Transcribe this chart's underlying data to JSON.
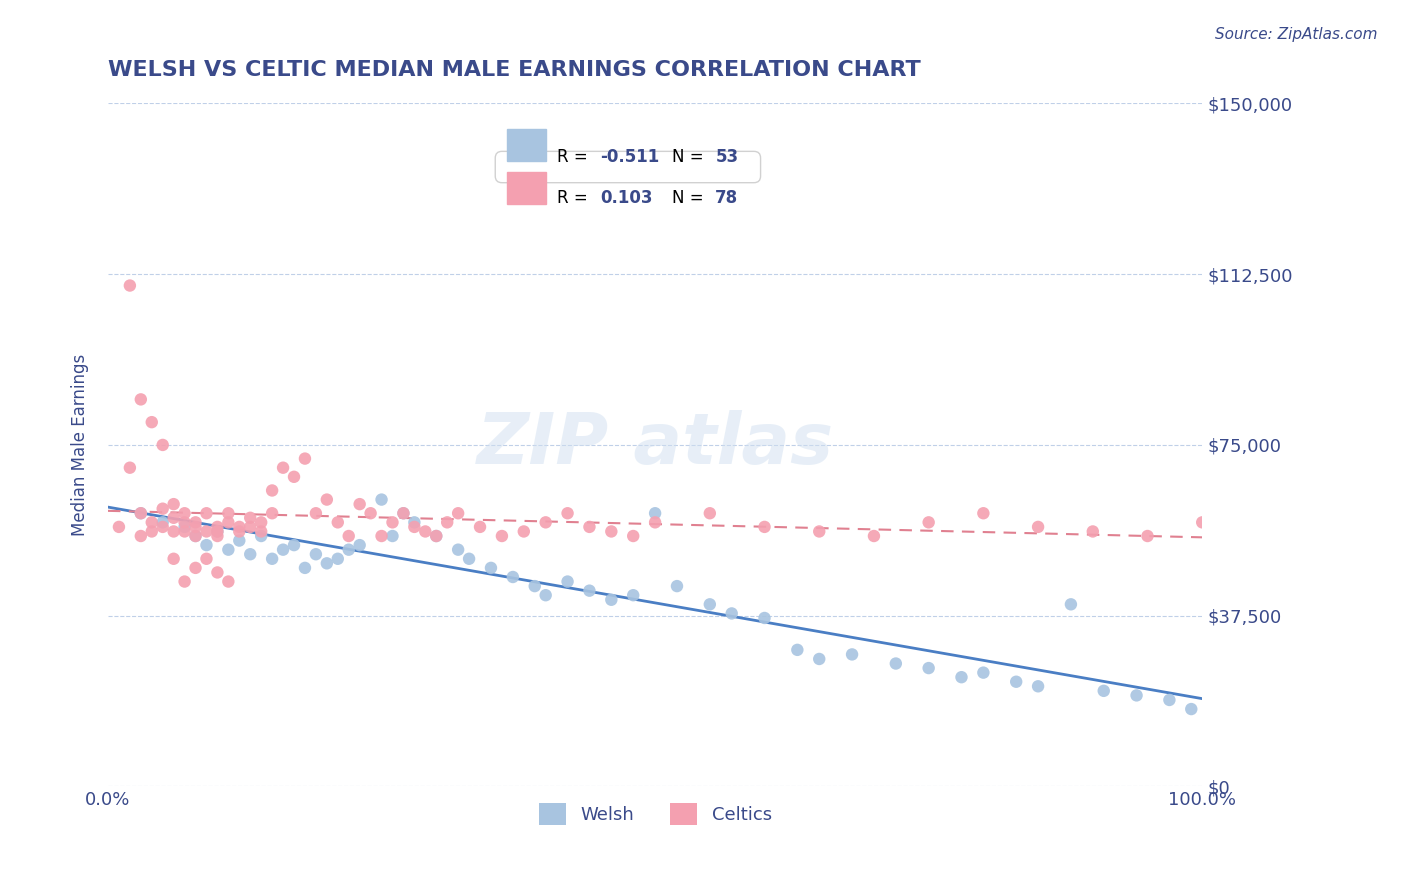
{
  "title": "WELSH VS CELTIC MEDIAN MALE EARNINGS CORRELATION CHART",
  "source": "Source: ZipAtlas.com",
  "xlabel": "",
  "ylabel": "Median Male Earnings",
  "xlim": [
    0.0,
    1.0
  ],
  "ylim": [
    0,
    150000
  ],
  "yticks": [
    0,
    37500,
    75000,
    112500,
    150000
  ],
  "ytick_labels": [
    "$0",
    "$37,500",
    "$75,000",
    "$112,500",
    "$150,000"
  ],
  "xtick_labels": [
    "0.0%",
    "100.0%"
  ],
  "welsh_color": "#a8c4e0",
  "celtics_color": "#f4a0b0",
  "welsh_R": -0.511,
  "welsh_N": 53,
  "celtics_R": 0.103,
  "celtics_N": 78,
  "title_color": "#3a4a8a",
  "source_color": "#3a4a8a",
  "axis_color": "#3a4a8a",
  "grid_color": "#c0d0e8",
  "watermark": "ZIPatlas",
  "legend_welsh_label": "Welsh",
  "legend_celtics_label": "Celtics",
  "welsh_x": [
    0.03,
    0.05,
    0.07,
    0.08,
    0.09,
    0.1,
    0.11,
    0.12,
    0.13,
    0.14,
    0.15,
    0.16,
    0.17,
    0.18,
    0.19,
    0.2,
    0.21,
    0.22,
    0.23,
    0.25,
    0.26,
    0.27,
    0.28,
    0.3,
    0.32,
    0.33,
    0.35,
    0.37,
    0.39,
    0.4,
    0.42,
    0.44,
    0.46,
    0.48,
    0.5,
    0.52,
    0.55,
    0.57,
    0.6,
    0.63,
    0.65,
    0.68,
    0.72,
    0.75,
    0.78,
    0.8,
    0.83,
    0.85,
    0.88,
    0.91,
    0.94,
    0.97,
    0.99
  ],
  "welsh_y": [
    60000,
    58000,
    57000,
    55000,
    53000,
    56000,
    52000,
    54000,
    51000,
    55000,
    50000,
    52000,
    53000,
    48000,
    51000,
    49000,
    50000,
    52000,
    53000,
    63000,
    55000,
    60000,
    58000,
    55000,
    52000,
    50000,
    48000,
    46000,
    44000,
    42000,
    45000,
    43000,
    41000,
    42000,
    60000,
    44000,
    40000,
    38000,
    37000,
    30000,
    28000,
    29000,
    27000,
    26000,
    24000,
    25000,
    23000,
    22000,
    40000,
    21000,
    20000,
    19000,
    17000
  ],
  "celtics_x": [
    0.01,
    0.02,
    0.03,
    0.03,
    0.04,
    0.04,
    0.05,
    0.05,
    0.06,
    0.06,
    0.06,
    0.07,
    0.07,
    0.07,
    0.08,
    0.08,
    0.08,
    0.09,
    0.09,
    0.1,
    0.1,
    0.1,
    0.11,
    0.11,
    0.12,
    0.12,
    0.13,
    0.13,
    0.14,
    0.14,
    0.15,
    0.15,
    0.16,
    0.17,
    0.18,
    0.19,
    0.2,
    0.21,
    0.22,
    0.23,
    0.24,
    0.25,
    0.26,
    0.27,
    0.28,
    0.29,
    0.3,
    0.31,
    0.32,
    0.34,
    0.36,
    0.38,
    0.4,
    0.42,
    0.44,
    0.46,
    0.48,
    0.5,
    0.55,
    0.6,
    0.65,
    0.7,
    0.75,
    0.8,
    0.85,
    0.9,
    0.95,
    1.0,
    0.02,
    0.03,
    0.04,
    0.05,
    0.06,
    0.07,
    0.08,
    0.09,
    0.1,
    0.11
  ],
  "celtics_y": [
    57000,
    70000,
    60000,
    55000,
    58000,
    56000,
    61000,
    57000,
    59000,
    56000,
    62000,
    58000,
    56000,
    60000,
    55000,
    58000,
    57000,
    56000,
    60000,
    57000,
    56000,
    55000,
    60000,
    58000,
    57000,
    56000,
    59000,
    57000,
    58000,
    56000,
    60000,
    65000,
    70000,
    68000,
    72000,
    60000,
    63000,
    58000,
    55000,
    62000,
    60000,
    55000,
    58000,
    60000,
    57000,
    56000,
    55000,
    58000,
    60000,
    57000,
    55000,
    56000,
    58000,
    60000,
    57000,
    56000,
    55000,
    58000,
    60000,
    57000,
    56000,
    55000,
    58000,
    60000,
    57000,
    56000,
    55000,
    58000,
    110000,
    85000,
    80000,
    75000,
    50000,
    45000,
    48000,
    50000,
    47000,
    45000
  ]
}
